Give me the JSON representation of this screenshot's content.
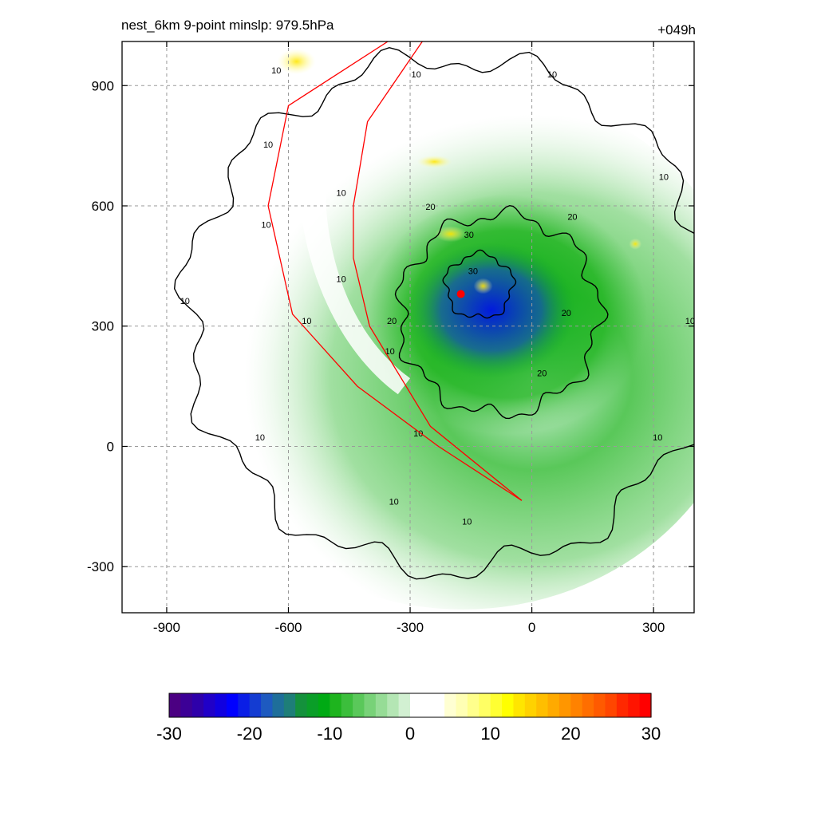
{
  "header": {
    "title_left": "nest_6km  9-point minslp: 979.5hPa",
    "title_right": "+049h"
  },
  "colors": {
    "storm_center": "#ff0000",
    "track_line": "#ff0000",
    "contour_line": "#000000",
    "grid_line": "#9a9a9a"
  },
  "chart_data": {
    "type": "heatmap",
    "title": "nest_6km  9-point minslp: 979.5hPa",
    "subtitle": "+049h",
    "xlabel": "",
    "ylabel": "",
    "xlim": [
      -1010,
      400
    ],
    "ylim": [
      -415,
      1010
    ],
    "xticks": [
      -900,
      -600,
      -300,
      0,
      300
    ],
    "yticks": [
      -300,
      0,
      300,
      600,
      900
    ],
    "grid": true,
    "contour_levels": [
      10,
      20,
      30
    ],
    "contour_labels": [
      {
        "text": "10",
        "x": -630,
        "y": 930
      },
      {
        "text": "10",
        "x": -285,
        "y": 920
      },
      {
        "text": "10",
        "x": 50,
        "y": 920
      },
      {
        "text": "10",
        "x": -650,
        "y": 745
      },
      {
        "text": "10",
        "x": 325,
        "y": 665
      },
      {
        "text": "10",
        "x": -470,
        "y": 625
      },
      {
        "text": "10",
        "x": -655,
        "y": 545
      },
      {
        "text": "20",
        "x": -250,
        "y": 590
      },
      {
        "text": "20",
        "x": 100,
        "y": 565
      },
      {
        "text": "30",
        "x": -155,
        "y": 520
      },
      {
        "text": "10",
        "x": -470,
        "y": 410
      },
      {
        "text": "30",
        "x": -145,
        "y": 430
      },
      {
        "text": "10",
        "x": -855,
        "y": 355
      },
      {
        "text": "20",
        "x": 85,
        "y": 325
      },
      {
        "text": "10",
        "x": -555,
        "y": 305
      },
      {
        "text": "10",
        "x": 390,
        "y": 305
      },
      {
        "text": "20",
        "x": -345,
        "y": 305
      },
      {
        "text": "10",
        "x": -350,
        "y": 230
      },
      {
        "text": "20",
        "x": 25,
        "y": 175
      },
      {
        "text": "10",
        "x": -280,
        "y": 25
      },
      {
        "text": "10",
        "x": 310,
        "y": 15
      },
      {
        "text": "10",
        "x": -670,
        "y": 15
      },
      {
        "text": "10",
        "x": -340,
        "y": -145
      },
      {
        "text": "10",
        "x": -160,
        "y": -195
      }
    ],
    "track_x": [
      [
        -355,
        -600,
        -650,
        -590,
        -430,
        -230,
        -25
      ],
      [
        -270,
        -405,
        -440,
        -440,
        -400,
        -250,
        -25
      ]
    ],
    "track_y": [
      [
        1010,
        850,
        600,
        330,
        150,
        0,
        -135
      ],
      [
        1010,
        810,
        600,
        470,
        300,
        50,
        -135
      ]
    ],
    "storm_center": {
      "x": -175,
      "y": 380
    },
    "colorbar": {
      "min": -30,
      "max": 30,
      "ticks": [
        -30,
        -20,
        -10,
        0,
        10,
        20,
        30
      ],
      "colors": [
        "#4b0082",
        "#3c0096",
        "#2e00aa",
        "#2000c8",
        "#1000e0",
        "#0000ff",
        "#0a1ee6",
        "#143cd2",
        "#1e5ac0",
        "#1e6e9a",
        "#1e7e78",
        "#14913c",
        "#0a9e28",
        "#00aa14",
        "#1eb41e",
        "#3cbe3c",
        "#5ac85a",
        "#78d278",
        "#96dc96",
        "#b4e6b4",
        "#d2f0d2",
        "#ffffff",
        "#ffffff",
        "#ffffff",
        "#ffffd2",
        "#ffffb4",
        "#ffff8c",
        "#ffff64",
        "#ffff32",
        "#ffff00",
        "#ffe600",
        "#ffd200",
        "#ffbe00",
        "#ffaa00",
        "#ff9600",
        "#ff8200",
        "#ff6e00",
        "#ff5a00",
        "#ff4600",
        "#ff2800",
        "#ff1400",
        "#ff0000"
      ]
    }
  }
}
